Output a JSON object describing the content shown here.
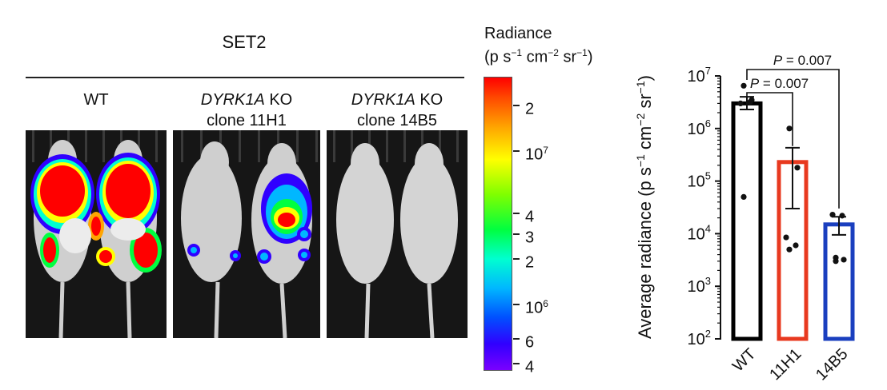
{
  "figure": {
    "set_title": "SET2",
    "groups": [
      {
        "italic": "",
        "text": "WT",
        "line2": ""
      },
      {
        "italic": "DYRK1A",
        "text": " KO",
        "line2": "clone 11H1"
      },
      {
        "italic": "DYRK1A",
        "text": " KO",
        "line2": "clone 14B5"
      }
    ],
    "colorbar": {
      "title_line1": "Radiance",
      "title_line2": {
        "a": "(p s",
        "e1": "−1",
        "b": " cm",
        "e2": "−2",
        "c": " sr",
        "e3": "−1",
        "d": ")"
      },
      "labels": [
        {
          "text": "2",
          "sup": ""
        },
        {
          "text": "10",
          "sup": "7"
        },
        {
          "text": "4",
          "sup": ""
        },
        {
          "text": "3",
          "sup": ""
        },
        {
          "text": "2",
          "sup": ""
        },
        {
          "text": "10",
          "sup": "6"
        },
        {
          "text": "6",
          "sup": ""
        },
        {
          "text": "4",
          "sup": ""
        }
      ],
      "colors": [
        "#ff0000",
        "#ffff00",
        "#00ff40",
        "#00b7ff",
        "#7a00ff"
      ]
    }
  },
  "chart_data": {
    "type": "bar",
    "categories": [
      "WT",
      "11H1",
      "14B5"
    ],
    "values": [
      3000000,
      230000,
      15000
    ],
    "error": [
      [
        2300000,
        4000000
      ],
      [
        30000,
        430000
      ],
      [
        9500,
        21000
      ]
    ],
    "points": [
      [
        6500000,
        3500000,
        3000000,
        3200000,
        50000
      ],
      [
        1000000,
        180000,
        8500,
        6000,
        5000
      ],
      [
        3000,
        3200,
        23000,
        22000,
        3500
      ]
    ],
    "colors": [
      "#000000",
      "#e8391f",
      "#1a3fbf"
    ],
    "ylabel": {
      "main": "Average radiance (p s",
      "e1": "−1",
      "b": " cm",
      "e2": "−2",
      "c": " sr",
      "e3": "−1",
      "d": ")"
    },
    "yscale": "log",
    "ylim": [
      100,
      10000000
    ],
    "yticks": [
      {
        "base": "10",
        "exp": "2"
      },
      {
        "base": "10",
        "exp": "3"
      },
      {
        "base": "10",
        "exp": "4"
      },
      {
        "base": "10",
        "exp": "5"
      },
      {
        "base": "10",
        "exp": "6"
      },
      {
        "base": "10",
        "exp": "7"
      }
    ],
    "annotations": [
      {
        "text": "P = 0.007",
        "from": "WT",
        "to": "14B5"
      },
      {
        "text": "P = 0.007",
        "from": "WT",
        "to": "11H1"
      }
    ]
  }
}
